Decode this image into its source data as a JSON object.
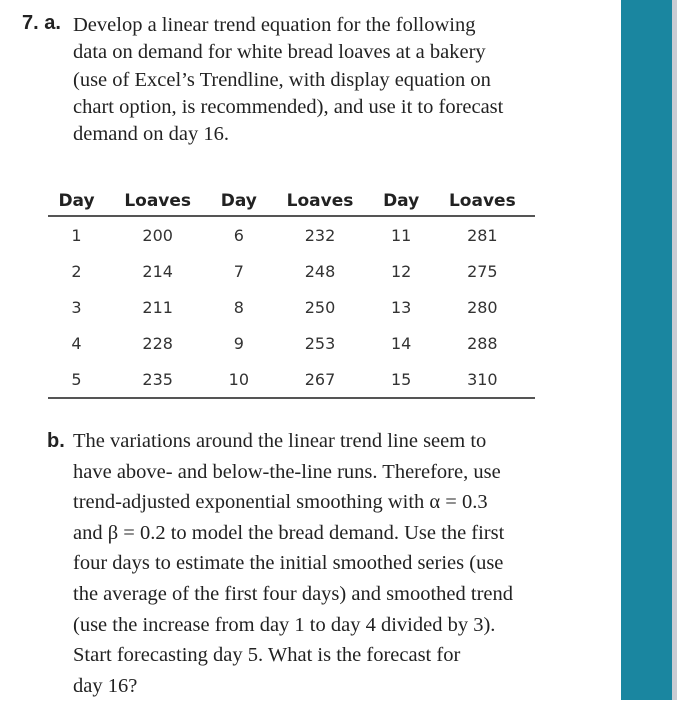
{
  "problem_number": "7. a.",
  "part_a": [
    "Develop a linear trend equation for the following",
    "data on demand for white bread loaves at a bakery",
    "(use of Excel’s Trendline, with display equation on",
    "chart option, is recommended), and use it to forecast",
    "demand on day 16."
  ],
  "table": {
    "headers": [
      "Day",
      "Loaves",
      "Day",
      "Loaves",
      "Day",
      "Loaves"
    ],
    "rows": [
      [
        "1",
        "200",
        "6",
        "232",
        "11",
        "281"
      ],
      [
        "2",
        "214",
        "7",
        "248",
        "12",
        "275"
      ],
      [
        "3",
        "211",
        "8",
        "250",
        "13",
        "280"
      ],
      [
        "4",
        "228",
        "9",
        "253",
        "14",
        "288"
      ],
      [
        "5",
        "235",
        "10",
        "267",
        "15",
        "310"
      ]
    ]
  },
  "part_b_label": "b.",
  "part_b": [
    "The variations around the linear trend line seem to",
    "have above- and below-the-line runs. Therefore, use",
    "trend-adjusted exponential smoothing with α = 0.3",
    "and β = 0.2 to model the bread demand. Use the first",
    "four days to estimate the initial smoothed series (use",
    "the average of the first four days) and smoothed trend",
    "(use the increase from day 1 to day 4 divided by 3).",
    "Start forecasting day 5. What is the forecast for",
    "day 16?"
  ],
  "colors": {
    "side_bar": "#1a86a0"
  }
}
